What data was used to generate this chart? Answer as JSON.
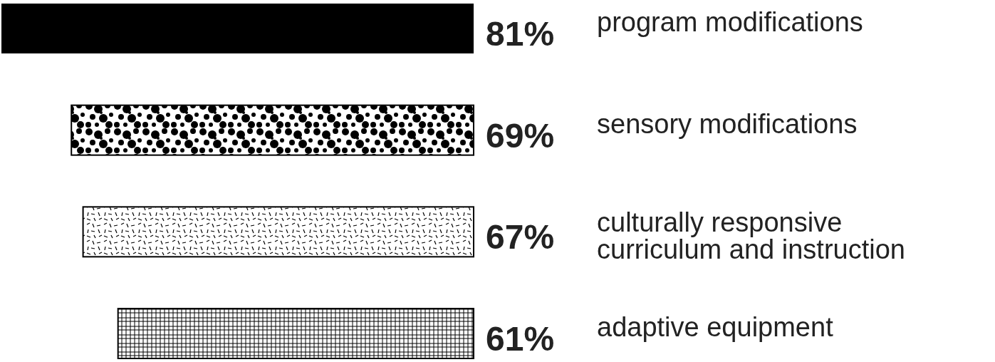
{
  "chart_data": {
    "type": "bar",
    "orientation": "horizontal",
    "categories": [
      "program modifications",
      "sensory modifications",
      "culturally responsive curriculum and instruction",
      "adaptive equipment"
    ],
    "values": [
      81,
      69,
      67,
      61
    ],
    "value_labels": [
      "81%",
      "69%",
      "67%",
      "61%"
    ],
    "colors": [
      "#000000",
      "#000000",
      "#000000",
      "#000000"
    ]
  }
}
